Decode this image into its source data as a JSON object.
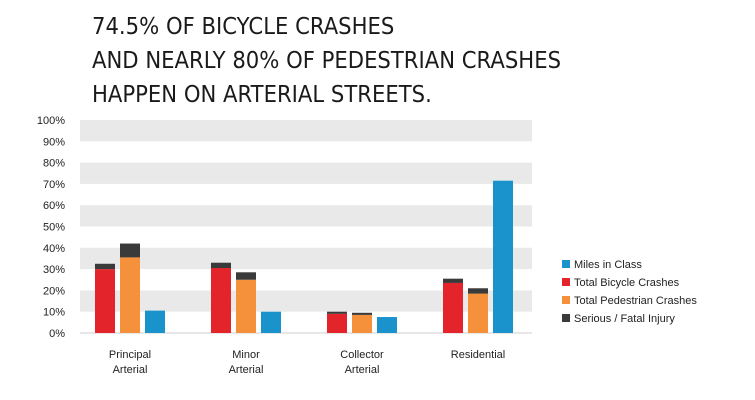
{
  "title_lines": [
    "74.5% OF BICYCLE CRASHES",
    "AND NEARLY 80% OF PEDESTRIAN CRASHES",
    "HAPPEN ON ARTERIAL STREETS."
  ],
  "colors": {
    "miles": "#1a93cc",
    "bicycle": "#e3242b",
    "pedestrian": "#f5913a",
    "serious": "#3a3a3a",
    "band": "#e9e9e9"
  },
  "chart_data": {
    "type": "bar",
    "stacked_overlay": "Serious / Fatal Injury shown as dark cap on top of crash bars",
    "categories": [
      [
        "Principal",
        "Arterial"
      ],
      [
        "Minor",
        "Arterial"
      ],
      [
        "Collector",
        "Arterial"
      ],
      [
        "Residential"
      ]
    ],
    "series": [
      {
        "name": "Total Bicycle Crashes",
        "values": [
          30,
          30.5,
          9,
          23.5
        ]
      },
      {
        "name": "Total Pedestrian Crashes",
        "values": [
          35.5,
          25,
          8.5,
          18.5
        ]
      },
      {
        "name": "Miles in Class",
        "values": [
          10.5,
          10,
          7.5,
          71.5
        ]
      }
    ],
    "serious_fatal": {
      "name": "Serious / Fatal Injury",
      "bicycle_total": [
        32.5,
        33,
        10,
        25.5
      ],
      "pedestrian_total": [
        42,
        28.5,
        9.5,
        21
      ]
    },
    "y_ticks": [
      "0%",
      "10%",
      "20%",
      "30%",
      "40%",
      "50%",
      "60%",
      "70%",
      "80%",
      "90%",
      "100%"
    ],
    "ylim": [
      0,
      100
    ],
    "legend": [
      "Miles in Class",
      "Total Bicycle Crashes",
      "Total Pedestrian Crashes",
      "Serious / Fatal Injury"
    ],
    "legend_position": "right"
  }
}
